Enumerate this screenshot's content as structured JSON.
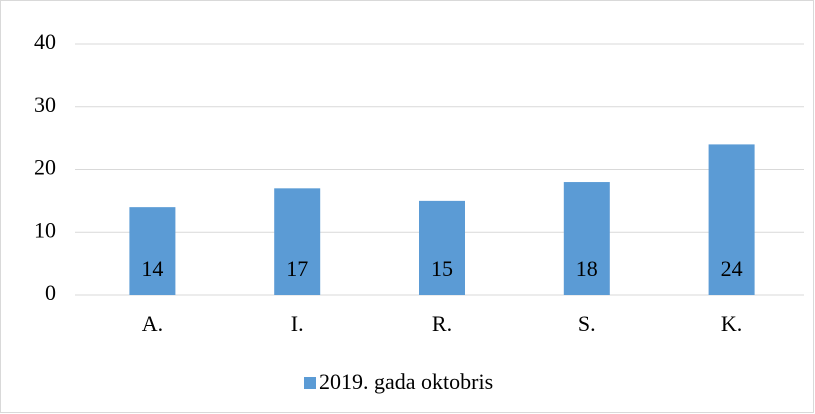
{
  "chart_data": {
    "type": "bar",
    "categories": [
      "A.",
      "I.",
      "R.",
      "S.",
      "K."
    ],
    "series": [
      {
        "name": "2019. gada oktobris",
        "color": "#5b9bd5",
        "values": [
          14,
          17,
          15,
          18,
          24
        ]
      }
    ],
    "ylim": [
      0,
      40
    ],
    "yticks": [
      0,
      10,
      20,
      30,
      40
    ],
    "grid": true,
    "legend": "bottom",
    "data_labels": true
  }
}
